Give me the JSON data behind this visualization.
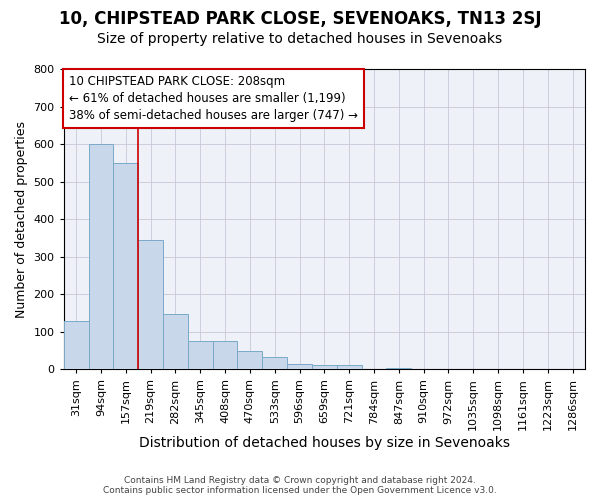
{
  "title": "10, CHIPSTEAD PARK CLOSE, SEVENOAKS, TN13 2SJ",
  "subtitle": "Size of property relative to detached houses in Sevenoaks",
  "xlabel": "Distribution of detached houses by size in Sevenoaks",
  "ylabel": "Number of detached properties",
  "footer_line1": "Contains HM Land Registry data © Crown copyright and database right 2024.",
  "footer_line2": "Contains public sector information licensed under the Open Government Licence v3.0.",
  "categories": [
    "31sqm",
    "94sqm",
    "157sqm",
    "219sqm",
    "282sqm",
    "345sqm",
    "408sqm",
    "470sqm",
    "533sqm",
    "596sqm",
    "659sqm",
    "721sqm",
    "784sqm",
    "847sqm",
    "910sqm",
    "972sqm",
    "1035sqm",
    "1098sqm",
    "1161sqm",
    "1223sqm",
    "1286sqm"
  ],
  "values": [
    128,
    600,
    550,
    345,
    148,
    75,
    75,
    50,
    33,
    15,
    13,
    12,
    0,
    5,
    0,
    0,
    0,
    0,
    0,
    0,
    0
  ],
  "bar_color": "#c8d8ea",
  "bar_edge_color": "#7aaac8",
  "annotation_line1": "10 CHIPSTEAD PARK CLOSE: 208sqm",
  "annotation_line2": "← 61% of detached houses are smaller (1,199)",
  "annotation_line3": "38% of semi-detached houses are larger (747) →",
  "annotation_box_color": "#ffffff",
  "annotation_box_edge": "#cc0000",
  "red_line_color": "#cc0000",
  "red_line_x": 2.5,
  "ylim": [
    0,
    800
  ],
  "yticks": [
    0,
    100,
    200,
    300,
    400,
    500,
    600,
    700,
    800
  ],
  "grid_color": "#c8c8d8",
  "background_color": "#eef2f8",
  "title_fontsize": 12,
  "subtitle_fontsize": 10,
  "ylabel_fontsize": 9,
  "xlabel_fontsize": 10,
  "tick_fontsize": 8,
  "xtick_fontsize": 8
}
